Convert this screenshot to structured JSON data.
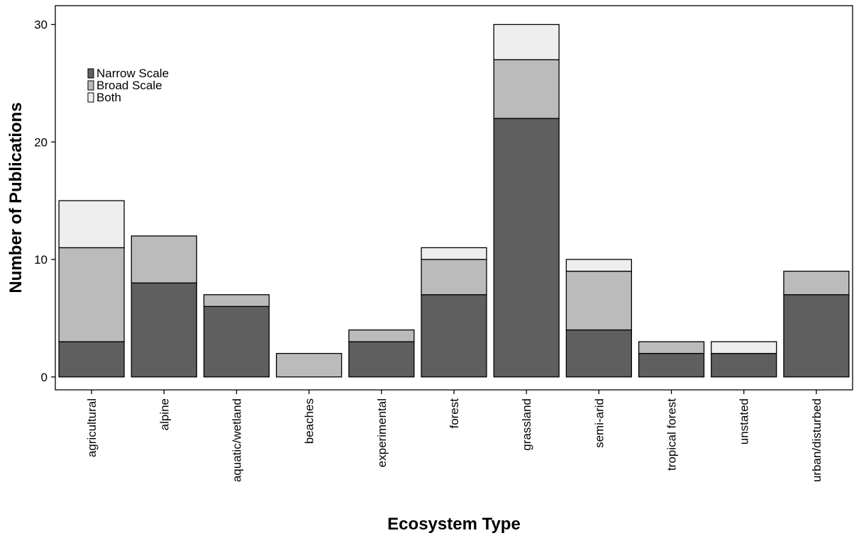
{
  "chart_data": {
    "type": "bar",
    "stacked": true,
    "categories": [
      "agricultural",
      "alpine",
      "aquatic/wetland",
      "beaches",
      "experimental",
      "forest",
      "grassland",
      "semi-arid",
      "tropical forest",
      "unstated",
      "urban/disturbed"
    ],
    "series": [
      {
        "name": "Narrow Scale",
        "values": [
          3,
          8,
          6,
          0,
          3,
          7,
          22,
          4,
          2,
          2,
          7
        ]
      },
      {
        "name": "Broad Scale",
        "values": [
          8,
          4,
          1,
          2,
          1,
          3,
          5,
          5,
          1,
          0,
          2
        ]
      },
      {
        "name": "Both",
        "values": [
          4,
          0,
          0,
          0,
          0,
          1,
          3,
          1,
          0,
          1,
          0
        ]
      }
    ],
    "xlabel": "Ecosystem Type",
    "ylabel": "Number of Publications",
    "ylim": [
      -1.1,
      31.6
    ],
    "yticks": [
      "0",
      "10",
      "20",
      "30"
    ],
    "legend": "top-left, inside plot",
    "grid": false,
    "colors": {
      "Narrow Scale": "#5f5f5f",
      "Broad Scale": "#bbbbbb",
      "Both": "#eeeeee",
      "outline": "#000000"
    }
  }
}
